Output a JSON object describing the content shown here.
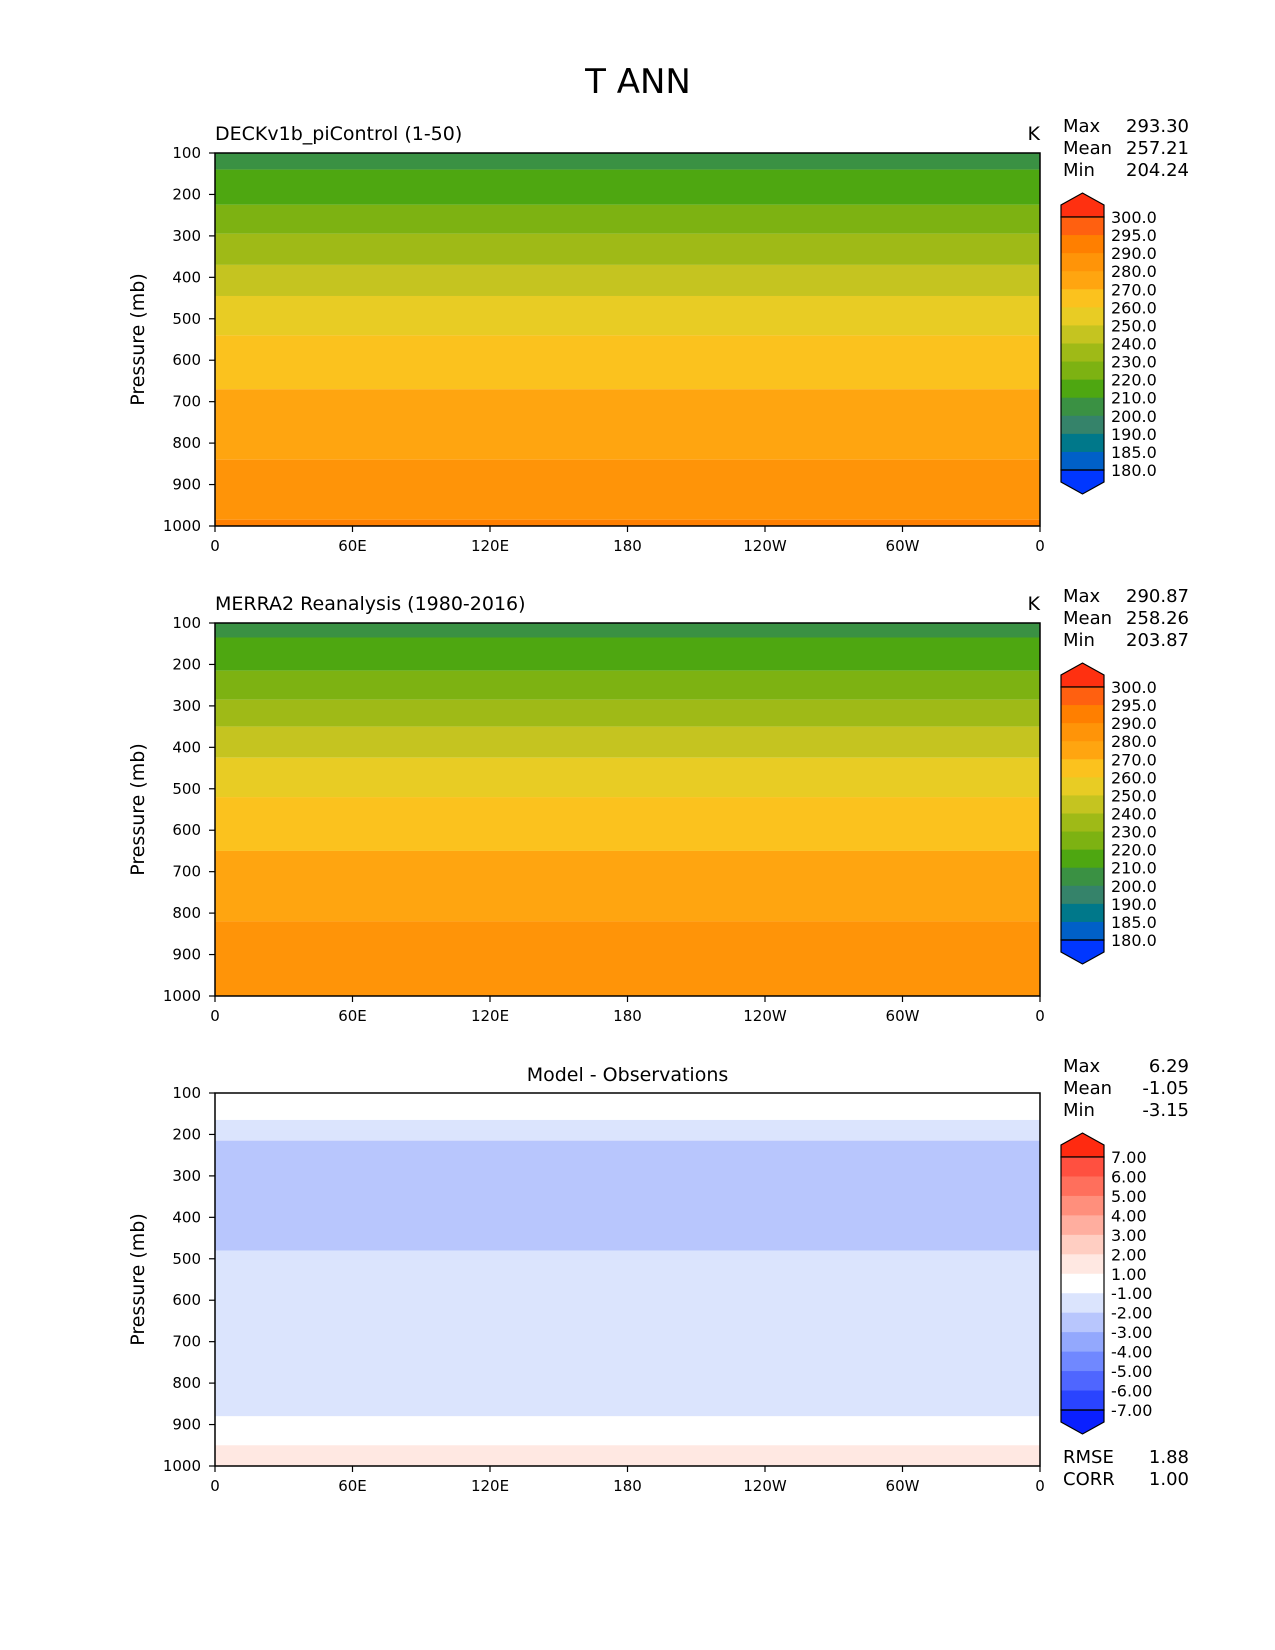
{
  "figure": {
    "title": "T ANN",
    "yaxis_label": "Pressure (mb)",
    "y_ticks": [
      "100",
      "200",
      "300",
      "400",
      "500",
      "600",
      "700",
      "800",
      "900",
      "1000"
    ],
    "x_ticks": [
      "0",
      "60E",
      "120E",
      "180",
      "120W",
      "60W",
      "0"
    ]
  },
  "chart_data": [
    {
      "type": "heatmap",
      "title": "DECKv1b_piControl (1-50)",
      "units": "K",
      "xlabel": "",
      "ylabel": "Pressure (mb)",
      "xlim": [
        0,
        360
      ],
      "ylim": [
        1000,
        100
      ],
      "stats": {
        "Max": "293.30",
        "Mean": "257.21",
        "Min": "204.24"
      },
      "colorbar": {
        "levels": [
          "300.0",
          "295.0",
          "290.0",
          "280.0",
          "270.0",
          "260.0",
          "250.0",
          "240.0",
          "230.0",
          "220.0",
          "210.0",
          "200.0",
          "190.0",
          "185.0",
          "180.0"
        ],
        "colors": [
          "#ff3010",
          "#ff6010",
          "#ff7f00",
          "#ff9408",
          "#ffa510",
          "#fbc21e",
          "#e8cc24",
          "#c5c420",
          "#9fba17",
          "#7db212",
          "#4ea711",
          "#3a9143",
          "#35836a",
          "#00788a",
          "#0060c8",
          "#0037ff"
        ]
      },
      "bands": [
        {
          "p_top": 100,
          "p_bottom": 140,
          "color": "#3a9143"
        },
        {
          "p_top": 140,
          "p_bottom": 225,
          "color": "#4ea711"
        },
        {
          "p_top": 225,
          "p_bottom": 295,
          "color": "#7db212"
        },
        {
          "p_top": 295,
          "p_bottom": 370,
          "color": "#9fba17"
        },
        {
          "p_top": 370,
          "p_bottom": 445,
          "color": "#c5c420"
        },
        {
          "p_top": 445,
          "p_bottom": 540,
          "color": "#e8cc24"
        },
        {
          "p_top": 540,
          "p_bottom": 670,
          "color": "#fbc21e"
        },
        {
          "p_top": 670,
          "p_bottom": 840,
          "color": "#ffa510"
        },
        {
          "p_top": 840,
          "p_bottom": 985,
          "color": "#ff9408"
        },
        {
          "p_top": 985,
          "p_bottom": 1000,
          "color": "#ff7f00"
        }
      ]
    },
    {
      "type": "heatmap",
      "title": "MERRA2 Reanalysis (1980-2016)",
      "units": "K",
      "xlabel": "",
      "ylabel": "Pressure (mb)",
      "xlim": [
        0,
        360
      ],
      "ylim": [
        1000,
        100
      ],
      "stats": {
        "Max": "290.87",
        "Mean": "258.26",
        "Min": "203.87"
      },
      "colorbar": {
        "levels": [
          "300.0",
          "295.0",
          "290.0",
          "280.0",
          "270.0",
          "260.0",
          "250.0",
          "240.0",
          "230.0",
          "220.0",
          "210.0",
          "200.0",
          "190.0",
          "185.0",
          "180.0"
        ],
        "colors": [
          "#ff3010",
          "#ff6010",
          "#ff7f00",
          "#ff9408",
          "#ffa510",
          "#fbc21e",
          "#e8cc24",
          "#c5c420",
          "#9fba17",
          "#7db212",
          "#4ea711",
          "#3a9143",
          "#35836a",
          "#00788a",
          "#0060c8",
          "#0037ff"
        ]
      },
      "bands": [
        {
          "p_top": 100,
          "p_bottom": 135,
          "color": "#3a9143"
        },
        {
          "p_top": 135,
          "p_bottom": 215,
          "color": "#4ea711"
        },
        {
          "p_top": 215,
          "p_bottom": 285,
          "color": "#7db212"
        },
        {
          "p_top": 285,
          "p_bottom": 350,
          "color": "#9fba17"
        },
        {
          "p_top": 350,
          "p_bottom": 425,
          "color": "#c5c420"
        },
        {
          "p_top": 425,
          "p_bottom": 520,
          "color": "#e8cc24"
        },
        {
          "p_top": 520,
          "p_bottom": 650,
          "color": "#fbc21e"
        },
        {
          "p_top": 650,
          "p_bottom": 820,
          "color": "#ffa510"
        },
        {
          "p_top": 820,
          "p_bottom": 1000,
          "color": "#ff9408"
        }
      ]
    },
    {
      "type": "heatmap",
      "title": "Model - Observations",
      "units": "",
      "xlabel": "",
      "ylabel": "Pressure (mb)",
      "xlim": [
        0,
        360
      ],
      "ylim": [
        1000,
        100
      ],
      "stats": {
        "Max": "6.29",
        "Mean": "-1.05",
        "Min": "-3.15"
      },
      "extra_stats": {
        "RMSE": "1.88",
        "CORR": "1.00"
      },
      "colorbar": {
        "levels": [
          "7.00",
          "6.00",
          "5.00",
          "4.00",
          "3.00",
          "2.00",
          "1.00",
          "-1.00",
          "-2.00",
          "-3.00",
          "-4.00",
          "-5.00",
          "-6.00",
          "-7.00"
        ],
        "colors": [
          "#ff2a10",
          "#ff5040",
          "#ff6f5c",
          "#ff8f7c",
          "#ffae9f",
          "#ffcec2",
          "#ffe8e2",
          "#ffffff",
          "#dbe4fd",
          "#b8c6fd",
          "#93a8fd",
          "#7088ff",
          "#4f66ff",
          "#2a44ff",
          "#0a20ff"
        ]
      },
      "bands": [
        {
          "p_top": 100,
          "p_bottom": 165,
          "color": "#ffffff"
        },
        {
          "p_top": 165,
          "p_bottom": 215,
          "color": "#dbe4fd"
        },
        {
          "p_top": 215,
          "p_bottom": 480,
          "color": "#b8c6fd"
        },
        {
          "p_top": 480,
          "p_bottom": 880,
          "color": "#dbe4fd"
        },
        {
          "p_top": 880,
          "p_bottom": 950,
          "color": "#ffffff"
        },
        {
          "p_top": 950,
          "p_bottom": 1000,
          "color": "#ffe8e2"
        }
      ]
    }
  ]
}
